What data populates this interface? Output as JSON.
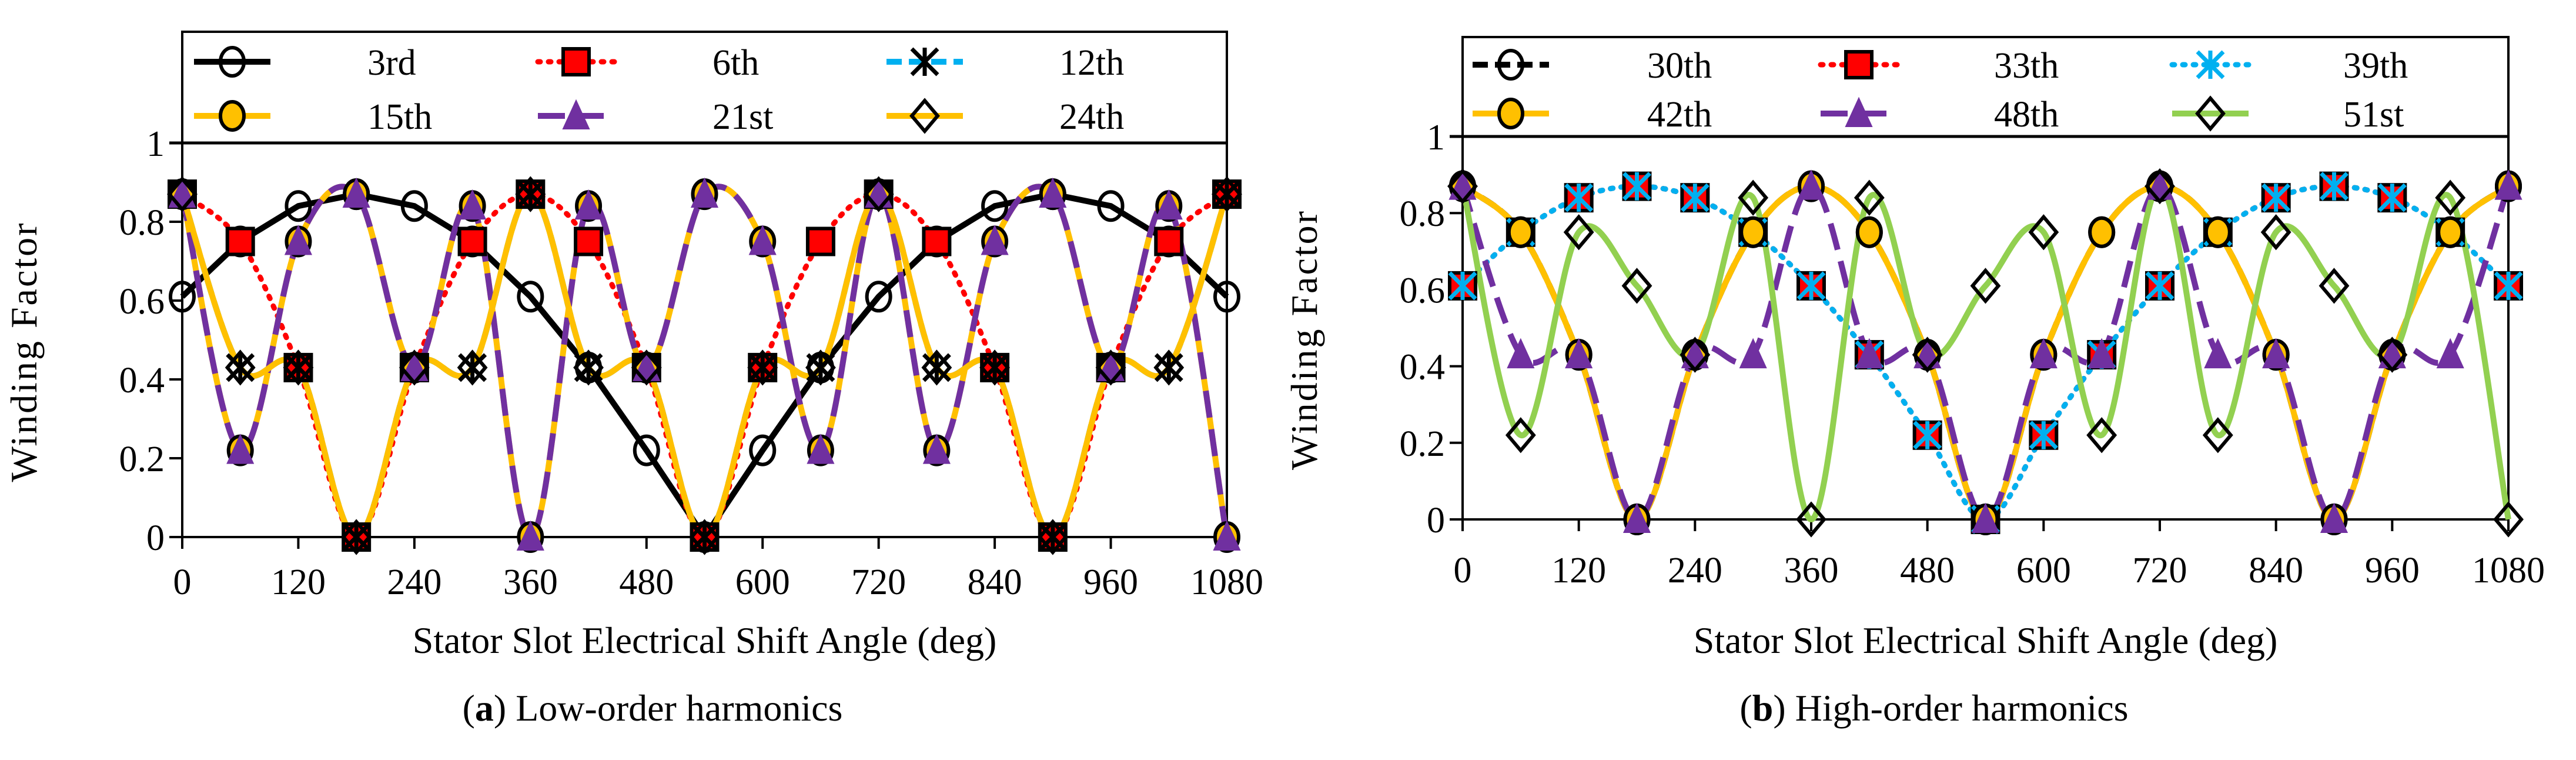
{
  "chart_data": [
    {
      "type": "line",
      "caption_letter": "a",
      "caption": ") Low-order harmonics",
      "caption_open": "(",
      "xlabel": "Stator Slot Electrical Shift Angle (deg)",
      "ylabel": "Winding Factor",
      "xlim": [
        0,
        1080
      ],
      "ylim": [
        0,
        1
      ],
      "xticks": [
        "0",
        "120",
        "240",
        "360",
        "480",
        "600",
        "720",
        "840",
        "960",
        "1080"
      ],
      "yticks": [
        "0",
        "0.2",
        "0.4",
        "0.6",
        "0.8",
        "1"
      ],
      "grid": false,
      "legend_position": "top",
      "x": [
        0,
        60,
        120,
        180,
        240,
        300,
        360,
        420,
        480,
        540,
        600,
        660,
        720,
        780,
        840,
        900,
        960,
        1020,
        1080
      ],
      "series": [
        {
          "name": "3rd",
          "color": "#000000",
          "dash": "solid",
          "marker": "circle-open",
          "values": [
            0.61,
            0.75,
            0.84,
            0.87,
            0.84,
            0.75,
            0.61,
            0.43,
            0.22,
            0,
            0.22,
            0.43,
            0.61,
            0.75,
            0.84,
            0.87,
            0.84,
            0.75,
            0.61
          ]
        },
        {
          "name": "6th",
          "color": "#ff0000",
          "dash": "dot",
          "marker": "square-red",
          "values": [
            0.87,
            0.75,
            0.43,
            0,
            0.43,
            0.75,
            0.87,
            0.75,
            0.43,
            0,
            0.43,
            0.75,
            0.87,
            0.75,
            0.43,
            0,
            0.43,
            0.75,
            0.87
          ]
        },
        {
          "name": "12th",
          "color": "#00b0f0",
          "dash": "dash",
          "marker": "asterisk-black",
          "values": [
            0.87,
            0.43,
            0.43,
            0,
            0.43,
            0.43,
            0.87,
            0.43,
            0.43,
            0,
            0.43,
            0.43,
            0.87,
            0.43,
            0.43,
            0,
            0.43,
            0.43,
            0.87
          ]
        },
        {
          "name": "15th",
          "color": "#ffc000",
          "dash": "solid",
          "marker": "circle-yellow",
          "values": [
            0.87,
            0.22,
            0.75,
            0.87,
            0.43,
            0.84,
            0,
            0.84,
            0.43,
            0.87,
            0.75,
            0.22,
            0.87,
            0.22,
            0.75,
            0.87,
            0.43,
            0.84,
            0
          ]
        },
        {
          "name": "21st",
          "color": "#7030a0",
          "dash": "longdash",
          "marker": "triangle-purple",
          "values": [
            0.87,
            0.22,
            0.75,
            0.87,
            0.43,
            0.84,
            0,
            0.84,
            0.43,
            0.87,
            0.75,
            0.22,
            0.87,
            0.22,
            0.75,
            0.87,
            0.43,
            0.84,
            0
          ]
        },
        {
          "name": "24th",
          "color": "#ffc000",
          "dash": "solid",
          "marker": "diamond-open",
          "values": [
            0.87,
            0.43,
            0.43,
            0,
            0.43,
            0.43,
            0.87,
            0.43,
            0.43,
            0,
            0.43,
            0.43,
            0.87,
            0.43,
            0.43,
            0,
            0.43,
            0.43,
            0.87
          ]
        }
      ]
    },
    {
      "type": "line",
      "caption_letter": "b",
      "caption": ") High-order harmonics",
      "caption_open": "(",
      "xlabel": "Stator Slot Electrical Shift Angle (deg)",
      "ylabel": "Winding Factor",
      "xlim": [
        0,
        1080
      ],
      "ylim": [
        0,
        1
      ],
      "xticks": [
        "0",
        "120",
        "240",
        "360",
        "480",
        "600",
        "720",
        "840",
        "960",
        "1080"
      ],
      "yticks": [
        "0",
        "0.2",
        "0.4",
        "0.6",
        "0.8",
        "1"
      ],
      "grid": false,
      "legend_position": "top",
      "x": [
        0,
        60,
        120,
        180,
        240,
        300,
        360,
        420,
        480,
        540,
        600,
        660,
        720,
        780,
        840,
        900,
        960,
        1020,
        1080
      ],
      "series": [
        {
          "name": "30th",
          "color": "#000000",
          "dash": "dash",
          "marker": "circle-open",
          "values": [
            0.87,
            0.75,
            0.43,
            0,
            0.43,
            0.75,
            0.87,
            0.75,
            0.43,
            0,
            0.43,
            0.75,
            0.87,
            0.75,
            0.43,
            0,
            0.43,
            0.75,
            0.87
          ]
        },
        {
          "name": "33th",
          "color": "#ff0000",
          "dash": "dot",
          "marker": "square-red",
          "values": [
            0.61,
            0.75,
            0.84,
            0.87,
            0.84,
            0.75,
            0.61,
            0.43,
            0.22,
            0,
            0.22,
            0.43,
            0.61,
            0.75,
            0.84,
            0.87,
            0.84,
            0.75,
            0.61
          ]
        },
        {
          "name": "39th",
          "color": "#00b0f0",
          "dash": "dot",
          "marker": "asterisk-blue",
          "values": [
            0.61,
            0.75,
            0.84,
            0.87,
            0.84,
            0.75,
            0.61,
            0.43,
            0.22,
            0,
            0.22,
            0.43,
            0.61,
            0.75,
            0.84,
            0.87,
            0.84,
            0.75,
            0.61
          ]
        },
        {
          "name": "42th",
          "color": "#ffc000",
          "dash": "solid",
          "marker": "circle-yellow",
          "values": [
            0.87,
            0.75,
            0.43,
            0,
            0.43,
            0.75,
            0.87,
            0.75,
            0.43,
            0,
            0.43,
            0.75,
            0.87,
            0.75,
            0.43,
            0,
            0.43,
            0.75,
            0.87
          ]
        },
        {
          "name": "48th",
          "color": "#7030a0",
          "dash": "longdash",
          "marker": "triangle-purple",
          "values": [
            0.87,
            0.43,
            0.43,
            0,
            0.43,
            0.43,
            0.87,
            0.43,
            0.43,
            0,
            0.43,
            0.43,
            0.87,
            0.43,
            0.43,
            0,
            0.43,
            0.43,
            0.87
          ]
        },
        {
          "name": "51st",
          "color": "#92d050",
          "dash": "solid",
          "marker": "diamond-open",
          "values": [
            0.87,
            0.22,
            0.75,
            0.61,
            0.43,
            0.84,
            0,
            0.84,
            0.43,
            0.61,
            0.75,
            0.22,
            0.87,
            0.22,
            0.75,
            0.61,
            0.43,
            0.84,
            0
          ]
        }
      ]
    }
  ]
}
